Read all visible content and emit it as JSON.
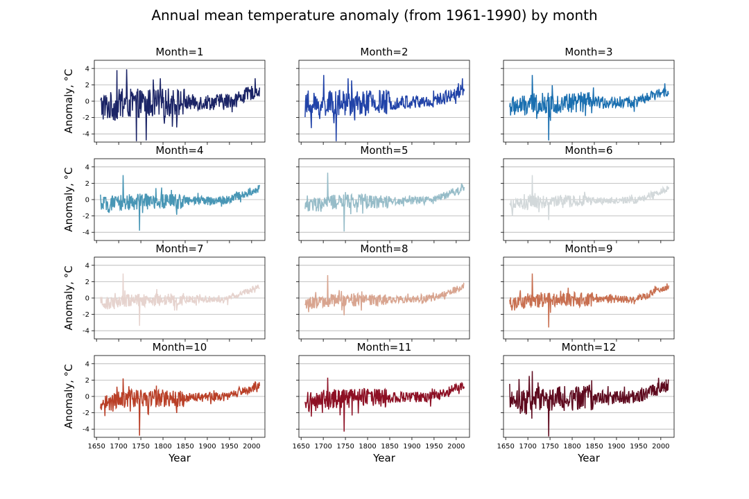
{
  "figure": {
    "title": "Annual mean temperature anomaly (from 1961-1990) by month"
  },
  "chart_data": {
    "type": "line",
    "title": "Annual mean temperature anomaly (from 1961-1990) by month",
    "xlabel": "Year",
    "ylabel": "Anomaly, °C",
    "xlim": [
      1645,
      2030
    ],
    "ylim": [
      -5,
      5
    ],
    "xticks": [
      1650,
      1700,
      1750,
      1800,
      1850,
      1900,
      1950,
      2000
    ],
    "yticks": [
      -4,
      -2,
      0,
      2,
      4
    ],
    "grid": "horizontal",
    "x_start": 1659,
    "x_end": 2018,
    "panels": [
      {
        "title": "Month=1",
        "color": "#1b2466",
        "noise_amplitude": 1.8,
        "extreme_values": [
          3.8,
          3.9,
          -4.9,
          -4.8
        ]
      },
      {
        "title": "Month=2",
        "color": "#2143a8",
        "noise_amplitude": 1.6,
        "extreme_values": [
          3.2,
          -4.9,
          2.8
        ]
      },
      {
        "title": "Month=3",
        "color": "#1a6fb0",
        "noise_amplitude": 1.3,
        "extreme_values": [
          3.2,
          -4.8
        ]
      },
      {
        "title": "Month=4",
        "color": "#4896b5",
        "noise_amplitude": 1.0,
        "extreme_values": [
          3.0,
          -3.8
        ]
      },
      {
        "title": "Month=5",
        "color": "#96bcc8",
        "noise_amplitude": 0.9,
        "extreme_values": [
          3.3,
          -3.9
        ]
      },
      {
        "title": "Month=6",
        "color": "#d2d8da",
        "noise_amplitude": 0.8,
        "extreme_values": [
          3.0,
          -2.5
        ]
      },
      {
        "title": "Month=7",
        "color": "#e6d3ce",
        "noise_amplitude": 0.8,
        "extreme_values": [
          3.0,
          -3.4
        ]
      },
      {
        "title": "Month=8",
        "color": "#d8a48f",
        "noise_amplitude": 0.8,
        "extreme_values": [
          2.8,
          -2.1
        ]
      },
      {
        "title": "Month=9",
        "color": "#c86f50",
        "noise_amplitude": 0.9,
        "extreme_values": [
          3.0,
          -3.6
        ]
      },
      {
        "title": "Month=10",
        "color": "#b93f27",
        "noise_amplitude": 1.1,
        "extreme_values": [
          2.2,
          -4.8
        ]
      },
      {
        "title": "Month=11",
        "color": "#8d1024",
        "noise_amplitude": 1.2,
        "extreme_values": [
          2.3,
          -4.3
        ]
      },
      {
        "title": "Month=12",
        "color": "#5e0a1e",
        "noise_amplitude": 1.6,
        "extreme_values": [
          3.1,
          -4.9
        ]
      }
    ]
  }
}
